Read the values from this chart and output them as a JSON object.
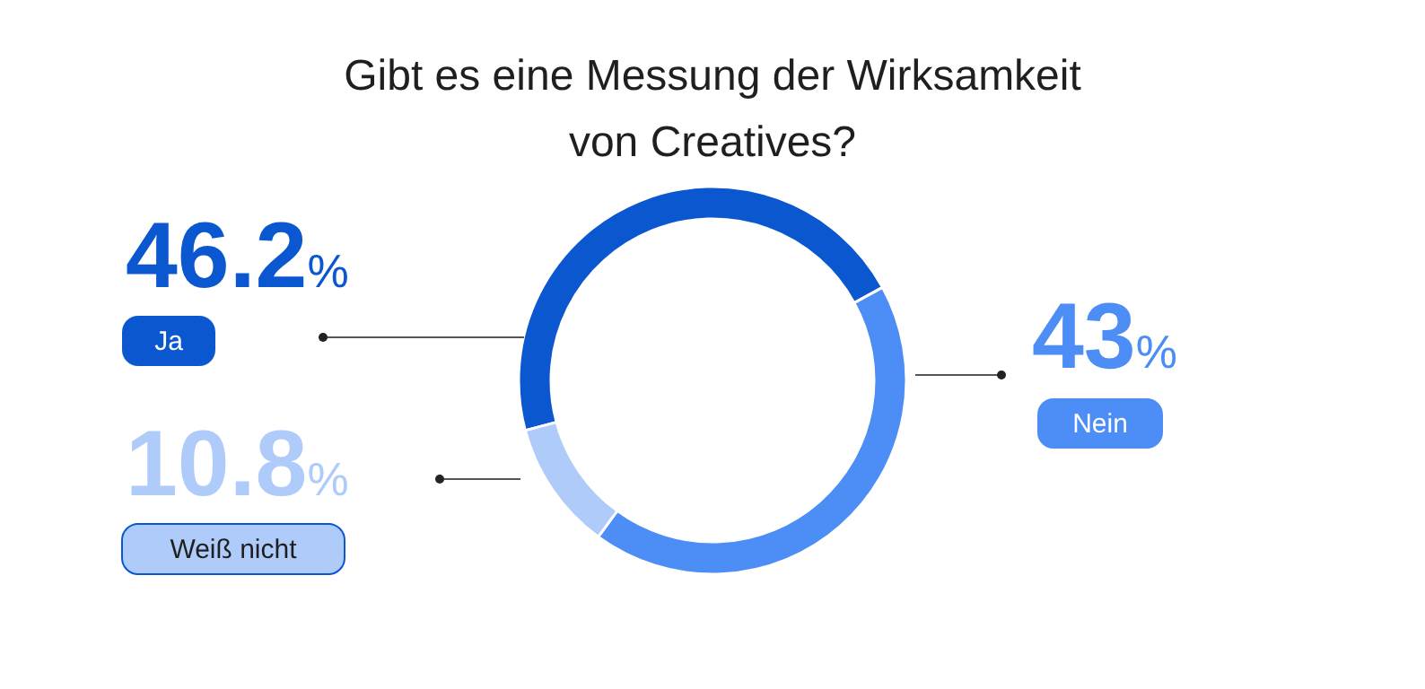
{
  "chart_data": {
    "type": "donut",
    "title": "Gibt es eine Messung der Wirksamkeit von Creatives?",
    "categories": [
      "Ja",
      "Nein",
      "Weiß nicht"
    ],
    "values": [
      46.2,
      43,
      10.8
    ],
    "colors": [
      "#0b57d0",
      "#4c8df6",
      "#aecbfa"
    ],
    "value_labels": [
      "46.2%",
      "43%",
      "10.8%"
    ]
  }
}
